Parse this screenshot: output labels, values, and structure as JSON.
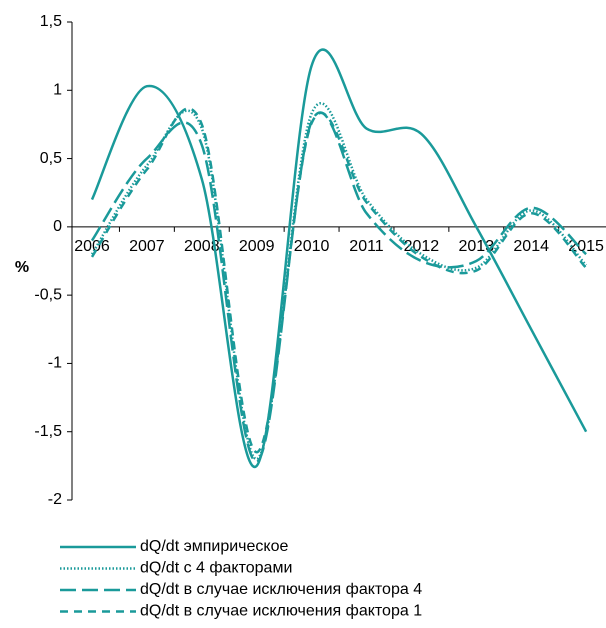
{
  "chart_data": {
    "type": "line",
    "y_label": "%",
    "categories": [
      "2006",
      "2007",
      "2008",
      "2009",
      "2010",
      "2011",
      "2012",
      "2013",
      "2014",
      "2015"
    ],
    "ylim": [
      -2,
      1.5
    ],
    "yticks": [
      {
        "value": 1.5,
        "label": "1,5"
      },
      1,
      {
        "value": 0.5,
        "label": "0,5"
      },
      0,
      {
        "value": -0.5,
        "label": "-0,5"
      },
      -1,
      {
        "value": -1.5,
        "label": "-1,5"
      },
      -2
    ],
    "series": [
      {
        "name": "dQ/dt эмпирическое",
        "color": "#1a9a9a",
        "dash": "solid",
        "values": [
          0.2,
          1.03,
          0.35,
          -1.75,
          1.18,
          0.72,
          0.68,
          0.0,
          -0.75,
          -1.5
        ]
      },
      {
        "name": "dQ/dt с 4 факторами",
        "color": "#1a9a9a",
        "dash": "dotted",
        "values": [
          -0.2,
          0.45,
          0.72,
          -1.7,
          0.83,
          0.2,
          -0.2,
          -0.3,
          0.12,
          -0.28
        ]
      },
      {
        "name": "dQ/dt в случае исключения фактора 4",
        "color": "#1a9a9a",
        "dash": "long",
        "values": [
          -0.1,
          0.5,
          0.6,
          -1.72,
          0.77,
          0.1,
          -0.25,
          -0.25,
          0.14,
          -0.2
        ]
      },
      {
        "name": "dQ/dt в случае исключения фактора 1",
        "color": "#1a9a9a",
        "dash": "short",
        "values": [
          -0.22,
          0.42,
          0.75,
          -1.65,
          0.76,
          0.18,
          -0.22,
          -0.32,
          0.1,
          -0.3
        ]
      }
    ]
  }
}
